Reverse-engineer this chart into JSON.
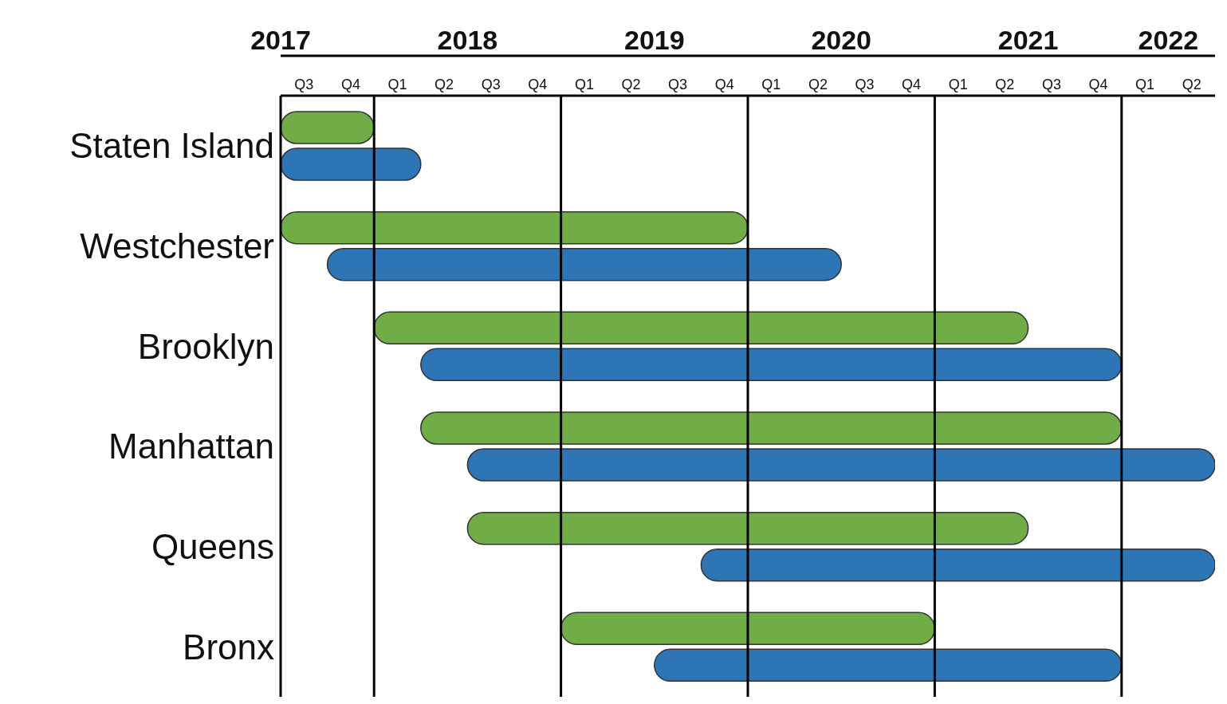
{
  "chart_data": {
    "type": "bar",
    "orientation": "horizontal",
    "categories": [
      "Staten Island",
      "Westchester",
      "Brooklyn",
      "Manhattan",
      "Queens",
      "Bronx"
    ],
    "series": [
      {
        "color": "#70ad47",
        "base": [
          2017.5,
          2017.5,
          2018.0,
          2018.25,
          2018.5,
          2019.0
        ],
        "values": [
          0.5,
          2.5,
          3.5,
          3.75,
          3.0,
          2.0
        ]
      },
      {
        "color": "#2e75b6",
        "base": [
          2017.5,
          2017.75,
          2018.25,
          2018.5,
          2019.75,
          2019.5
        ],
        "values": [
          0.75,
          2.75,
          3.75,
          4.0,
          2.75,
          2.5
        ]
      }
    ],
    "xlim": [
      2017.5,
      2022.5
    ],
    "xticks": [
      {
        "value": 2017.5,
        "label": "2017"
      },
      {
        "value": 2018.5,
        "label": "2018"
      },
      {
        "value": 2019.5,
        "label": "2019"
      },
      {
        "value": 2020.5,
        "label": "2020"
      },
      {
        "value": 2021.5,
        "label": "2021"
      },
      {
        "value": 2022.25,
        "label": "2022"
      }
    ],
    "annotations": [
      "Q3",
      "Q4",
      "Q1",
      "Q2",
      "Q3",
      "Q4",
      "Q1",
      "Q2",
      "Q3",
      "Q4",
      "Q1",
      "Q2",
      "Q3",
      "Q4",
      "Q1",
      "Q2",
      "Q3",
      "Q4",
      "Q1",
      "Q2"
    ],
    "ref_lines": [
      {
        "axis": "x",
        "value": 2018
      },
      {
        "axis": "x",
        "value": 2019
      },
      {
        "axis": "x",
        "value": 2020
      },
      {
        "axis": "x",
        "value": 2021
      },
      {
        "axis": "x",
        "value": 2022
      }
    ]
  }
}
